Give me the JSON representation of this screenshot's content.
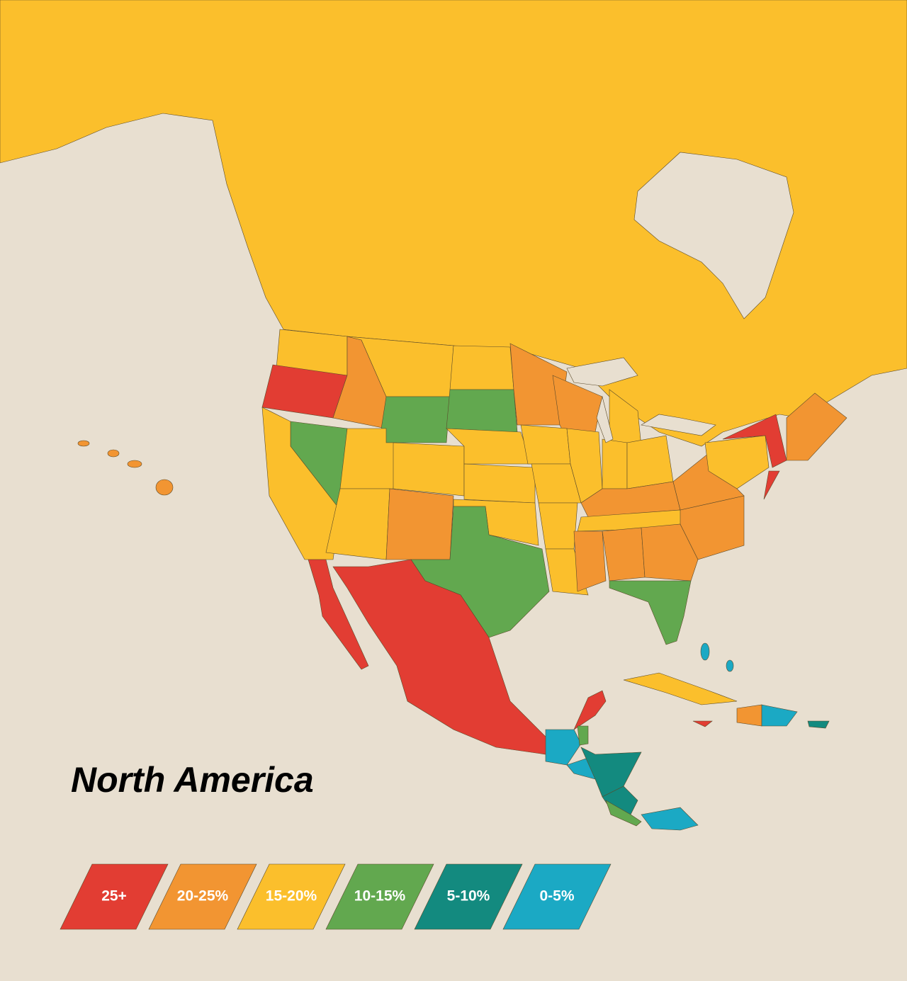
{
  "title": "North America",
  "legend": [
    {
      "label": "25+",
      "color": "#e23d33"
    },
    {
      "label": "20-25%",
      "color": "#f29532"
    },
    {
      "label": "15-20%",
      "color": "#fbbf2c"
    },
    {
      "label": "10-15%",
      "color": "#62a84f"
    },
    {
      "label": "5-10%",
      "color": "#138a7f"
    },
    {
      "label": "0-5%",
      "color": "#1ba9c4"
    }
  ]
}
